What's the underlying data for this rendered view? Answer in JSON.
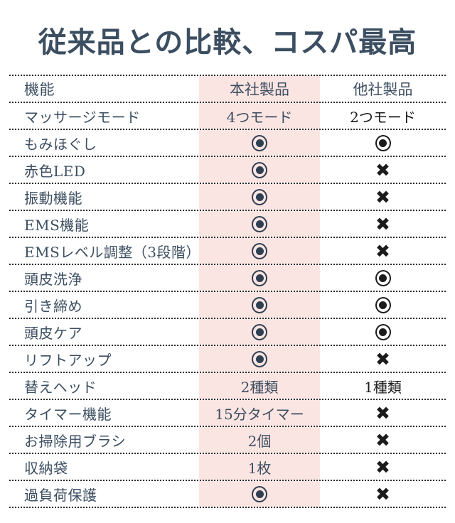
{
  "title": "従来品との比較、コスパ最高",
  "table": {
    "headers": [
      "機能",
      "本社製品",
      "他社製品"
    ],
    "rows": [
      {
        "feature": "マッサージモード",
        "ours": {
          "kind": "text",
          "value": "4つモード"
        },
        "theirs": {
          "kind": "text",
          "value": "2つモード"
        }
      },
      {
        "feature": "もみほぐし",
        "ours": {
          "kind": "circle"
        },
        "theirs": {
          "kind": "circle"
        }
      },
      {
        "feature": "赤色LED",
        "ours": {
          "kind": "circle"
        },
        "theirs": {
          "kind": "cross"
        }
      },
      {
        "feature": "振動機能",
        "ours": {
          "kind": "circle"
        },
        "theirs": {
          "kind": "cross"
        }
      },
      {
        "feature": "EMS機能",
        "ours": {
          "kind": "circle"
        },
        "theirs": {
          "kind": "cross"
        }
      },
      {
        "feature": "EMSレベル調整（3段階）",
        "ours": {
          "kind": "circle"
        },
        "theirs": {
          "kind": "cross"
        }
      },
      {
        "feature": "頭皮洗浄",
        "ours": {
          "kind": "circle"
        },
        "theirs": {
          "kind": "circle"
        }
      },
      {
        "feature": "引き締め",
        "ours": {
          "kind": "circle"
        },
        "theirs": {
          "kind": "circle"
        }
      },
      {
        "feature": "頭皮ケア",
        "ours": {
          "kind": "circle"
        },
        "theirs": {
          "kind": "circle"
        }
      },
      {
        "feature": "リフトアップ",
        "ours": {
          "kind": "circle"
        },
        "theirs": {
          "kind": "cross"
        }
      },
      {
        "feature": "替えヘッド",
        "ours": {
          "kind": "text",
          "value": "2種類"
        },
        "theirs": {
          "kind": "text",
          "value": "1種類"
        }
      },
      {
        "feature": "タイマー機能",
        "ours": {
          "kind": "text",
          "value": "15分タイマー"
        },
        "theirs": {
          "kind": "cross"
        }
      },
      {
        "feature": "お掃除用ブラシ",
        "ours": {
          "kind": "text",
          "value": "2個"
        },
        "theirs": {
          "kind": "cross"
        }
      },
      {
        "feature": "収納袋",
        "ours": {
          "kind": "text",
          "value": "1枚"
        },
        "theirs": {
          "kind": "cross"
        }
      },
      {
        "feature": "過負荷保護",
        "ours": {
          "kind": "circle"
        },
        "theirs": {
          "kind": "cross"
        }
      }
    ]
  },
  "icons": {
    "included_circle": "bullseye-circle-icon",
    "not_included_cross": "cross-icon",
    "cross_glyph": "✖"
  },
  "colors": {
    "highlight_pink": "#fbe5e2",
    "text_navy": "#3c4e61",
    "icon_navy": "#2e3f51",
    "icon_black": "#1b1b1b",
    "dotted_line": "#2c2c2c"
  }
}
